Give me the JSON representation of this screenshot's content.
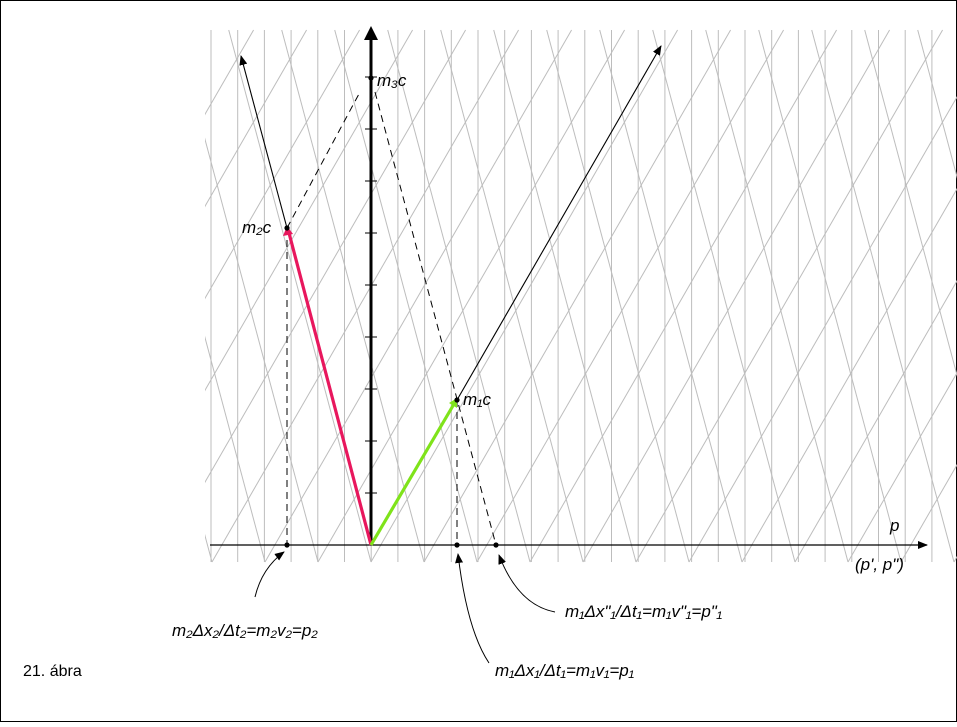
{
  "figure": {
    "caption": "21. ábra",
    "axis": {
      "horizontal_label": "p",
      "horizontal_sub_label": "(p', p\")",
      "vertical_label": "m3c"
    },
    "points": {
      "m3c": "m₃c",
      "m2c": "m₂c",
      "m1c": "m₁c"
    },
    "annotations": {
      "p2": "m₂Δx₂/Δt₂=m₂v₂=p₂",
      "p1": "m₁Δx₁/Δt₁=m₁v₁=p₁",
      "p1pp": "m₁Δx\"₁/Δt₁=m₁v\"₁=p\"₁"
    },
    "colors": {
      "m2_vector": "#e8175d",
      "m1_vector": "#7fe31a",
      "grid": "#bdbdbd",
      "axis": "#000000"
    }
  }
}
